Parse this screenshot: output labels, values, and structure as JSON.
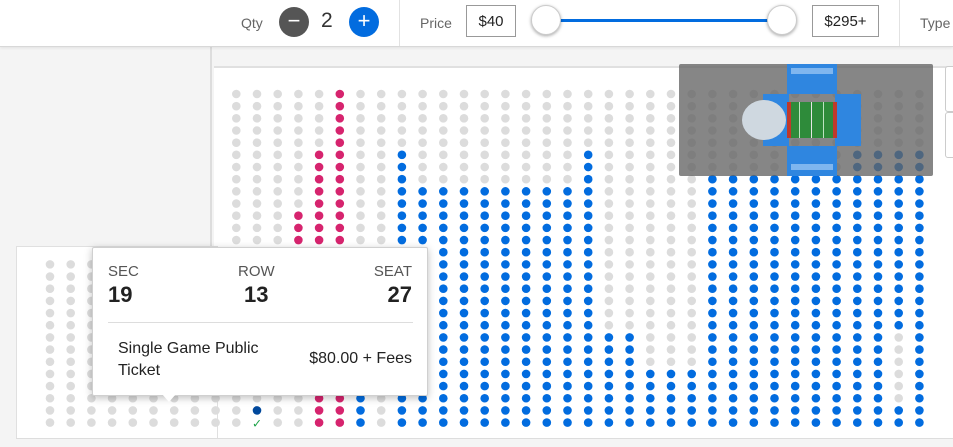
{
  "filters": {
    "qty_label": "Qty",
    "qty_minus": "−",
    "qty_value": "2",
    "qty_plus": "+",
    "price_label": "Price",
    "price_min": "$40",
    "price_max": "$295+",
    "type_label": "Type"
  },
  "tooltip": {
    "sec_label": "SEC",
    "sec_value": "19",
    "row_label": "ROW",
    "row_value": "13",
    "seat_label": "SEAT",
    "seat_value": "27",
    "ticket_type": "Single Game Public Ticket",
    "price": "$80.00 + Fees"
  },
  "overview_map": {
    "icon": "stadium-overview-icon"
  },
  "colors": {
    "available": "#026cdf",
    "unavailable": "#dcdcdc",
    "resale": "#d6246e",
    "selected": "#00489c",
    "selected_check": "#1fa34a"
  }
}
